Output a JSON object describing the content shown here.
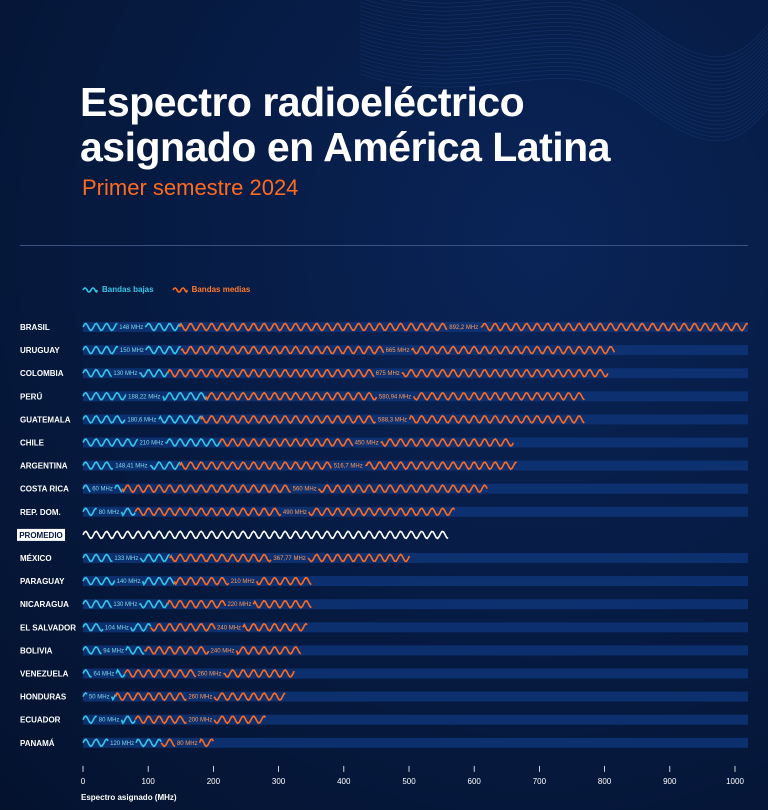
{
  "title_line1": "Espectro radioeléctrico",
  "title_line2": "asignado en América Latina",
  "subtitle": "Primer semestre 2024",
  "legend": {
    "low": "Bandas bajas",
    "mid": "Bandas medias"
  },
  "colors": {
    "low": "#35c6e8",
    "mid": "#ff6a21",
    "average": "#ffffff",
    "track": "#0e3477"
  },
  "chart_data": {
    "type": "bar",
    "stacked": true,
    "orientation": "horizontal",
    "xlabel": "Espectro asignado (MHz)",
    "xlim": [
      0,
      1000
    ],
    "xticks": [
      0,
      100,
      200,
      300,
      400,
      500,
      600,
      700,
      800,
      900,
      1000
    ],
    "series": [
      {
        "name": "Bandas bajas",
        "color": "#35c6e8"
      },
      {
        "name": "Bandas medias",
        "color": "#ff6a21"
      }
    ],
    "rows": [
      {
        "country": "BRASIL",
        "low": 148,
        "mid": 892.2,
        "low_label": "148 MHz",
        "mid_label": "892,2 MHz"
      },
      {
        "country": "URUGUAY",
        "low": 150,
        "mid": 665,
        "low_label": "150 MHz",
        "mid_label": "665 MHz"
      },
      {
        "country": "COLOMBIA",
        "low": 130,
        "mid": 675,
        "low_label": "130 MHz",
        "mid_label": "675 MHz"
      },
      {
        "country": "PERÚ",
        "low": 188.22,
        "mid": 580.94,
        "low_label": "188,22 MHz",
        "mid_label": "580,94 MHz"
      },
      {
        "country": "GUATEMALA",
        "low": 180.6,
        "mid": 588.3,
        "low_label": "180,6 MHz",
        "mid_label": "588,3 MHz"
      },
      {
        "country": "CHILE",
        "low": 210,
        "mid": 450,
        "low_label": "210 MHz",
        "mid_label": "450 MHz"
      },
      {
        "country": "ARGENTINA",
        "low": 148.41,
        "mid": 516.7,
        "low_label": "148,41 MHz",
        "mid_label": "516,7 MHz"
      },
      {
        "country": "COSTA RICA",
        "low": 60,
        "mid": 560,
        "low_label": "60 MHz",
        "mid_label": "560 MHz"
      },
      {
        "country": "REP. DOM.",
        "low": 80,
        "mid": 490,
        "low_label": "80 MHz",
        "mid_label": "490 MHz"
      },
      {
        "country": "PROMEDIO",
        "average": true,
        "total": 560
      },
      {
        "country": "MÉXICO",
        "low": 133,
        "mid": 367.77,
        "low_label": "133 MHz",
        "mid_label": "367,77 MHz"
      },
      {
        "country": "PARAGUAY",
        "low": 140,
        "mid": 210,
        "low_label": "140 MHz",
        "mid_label": "210 MHz"
      },
      {
        "country": "NICARAGUA",
        "low": 130,
        "mid": 220,
        "low_label": "130 MHz",
        "mid_label": "220 MHz"
      },
      {
        "country": "EL SALVADOR",
        "low": 104,
        "mid": 240,
        "low_label": "104 MHz",
        "mid_label": "240 MHz"
      },
      {
        "country": "BOLIVIA",
        "low": 94,
        "mid": 240,
        "low_label": "94 MHz",
        "mid_label": "240 MHz"
      },
      {
        "country": "VENEZUELA",
        "low": 64,
        "mid": 260,
        "low_label": "64 MHz",
        "mid_label": "260 MHz"
      },
      {
        "country": "HONDURAS",
        "low": 50,
        "mid": 260,
        "low_label": "50 MHz",
        "mid_label": "260 MHz"
      },
      {
        "country": "ECUADOR",
        "low": 80,
        "mid": 200,
        "low_label": "80 MHz",
        "mid_label": "200 MHz"
      },
      {
        "country": "PANAMÁ",
        "low": 120,
        "mid": 80,
        "low_label": "120 MHz",
        "mid_label": "80 MHz"
      }
    ]
  }
}
